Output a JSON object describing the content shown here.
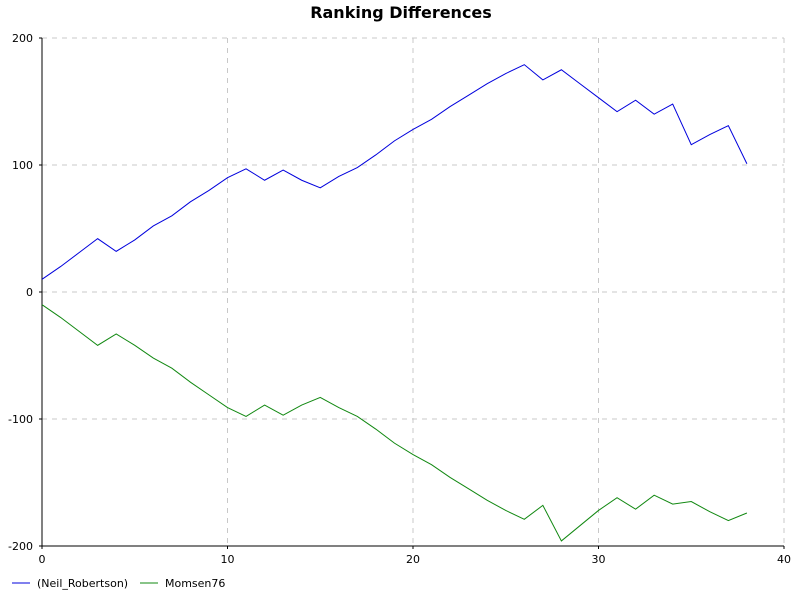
{
  "chart_data": {
    "type": "line",
    "title": "Ranking Differences",
    "xlabel": "",
    "ylabel": "",
    "xlim": [
      0,
      40
    ],
    "ylim": [
      -200,
      200
    ],
    "xticks": [
      0,
      10,
      20,
      30,
      40
    ],
    "yticks": [
      -200,
      -100,
      0,
      100,
      200
    ],
    "grid": true,
    "legend_position": "bottom-left",
    "x": [
      0,
      1,
      2,
      3,
      4,
      5,
      6,
      7,
      8,
      9,
      10,
      11,
      12,
      13,
      14,
      15,
      16,
      17,
      18,
      19,
      20,
      21,
      22,
      23,
      24,
      25,
      26,
      27,
      28,
      29,
      30,
      31,
      32,
      33,
      34,
      35,
      36,
      37,
      38
    ],
    "series": [
      {
        "name": "(Neil_Robertson)",
        "color": "#0000dd",
        "values": [
          10,
          20,
          31,
          42,
          32,
          41,
          52,
          60,
          71,
          80,
          90,
          97,
          88,
          96,
          88,
          82,
          91,
          98,
          108,
          119,
          128,
          136,
          146,
          155,
          164,
          172,
          179,
          167,
          175,
          164,
          153,
          142,
          151,
          140,
          148,
          116,
          124,
          131,
          101
        ]
      },
      {
        "name": "Momsen76",
        "color": "#118811",
        "values": [
          -10,
          -20,
          -31,
          -42,
          -33,
          -42,
          -52,
          -60,
          -71,
          -81,
          -91,
          -98,
          -89,
          -97,
          -89,
          -83,
          -91,
          -98,
          -108,
          -119,
          -128,
          -136,
          -146,
          -155,
          -164,
          -172,
          -179,
          -168,
          -196,
          -184,
          -172,
          -162,
          -171,
          -160,
          -167,
          -165,
          -173,
          -180,
          -174
        ]
      }
    ]
  }
}
